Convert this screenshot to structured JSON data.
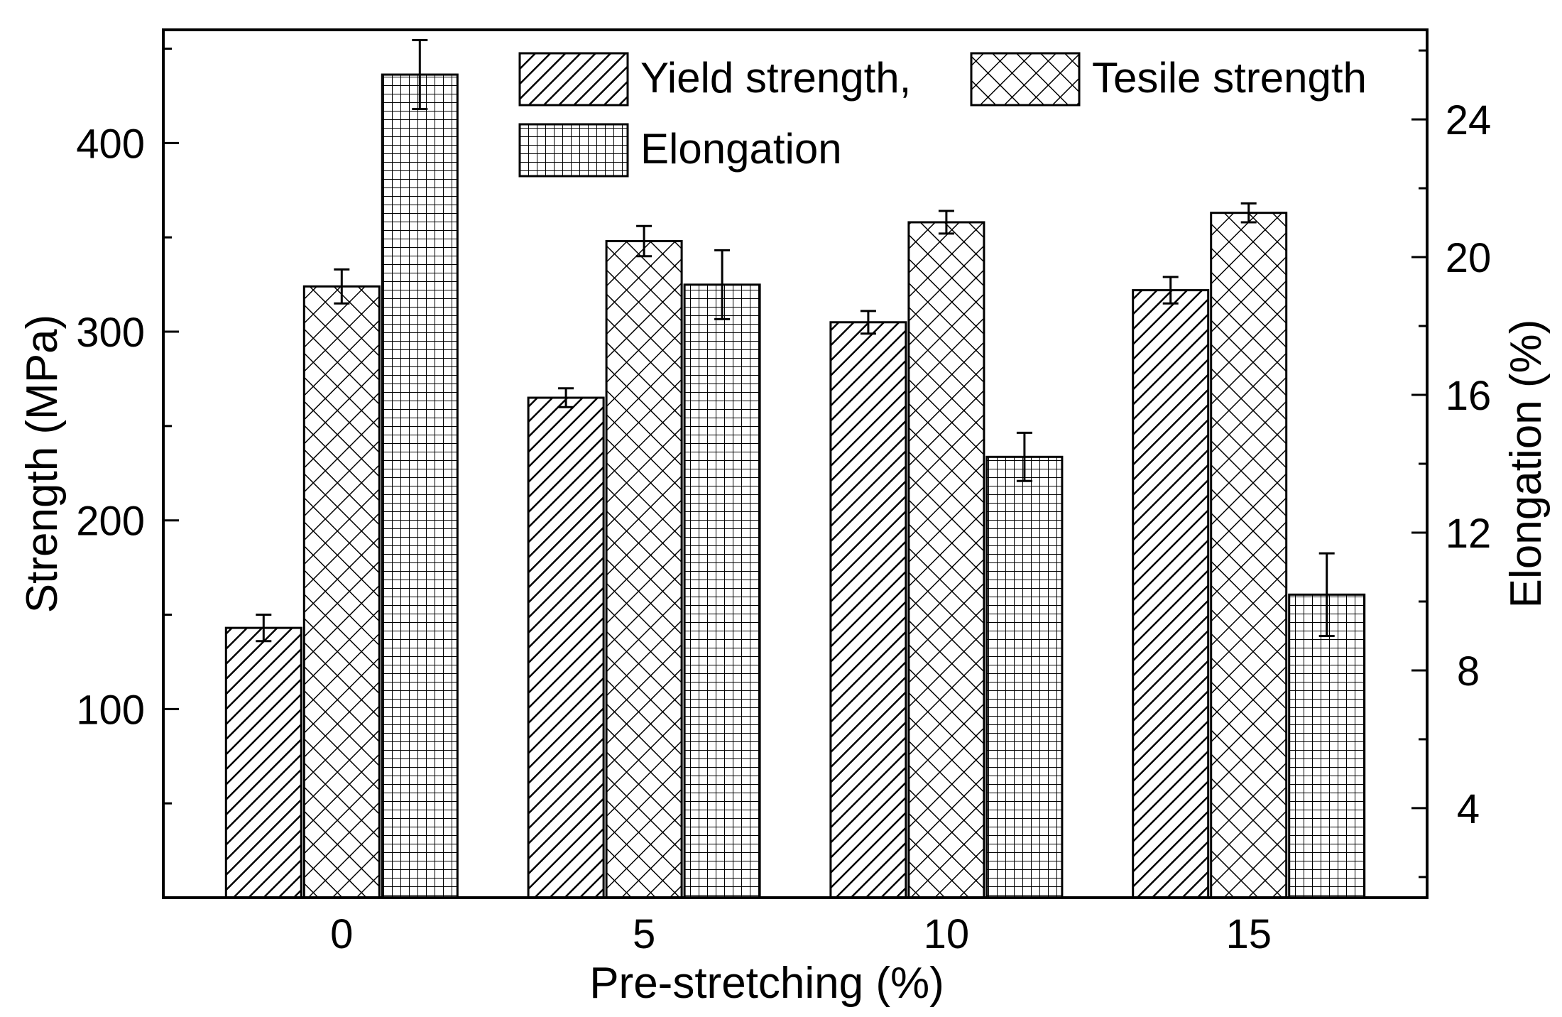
{
  "chart_data": {
    "type": "bar",
    "title": "",
    "xlabel": "Pre-stretching (%)",
    "ylabel": "Strength (MPa)",
    "y2label": "Elongation (%)",
    "categories": [
      "0",
      "5",
      "10",
      "15"
    ],
    "ylim": [
      0,
      460
    ],
    "y2lim": [
      1.4,
      26.6
    ],
    "yticks": [
      "100",
      "200",
      "300",
      "400"
    ],
    "y2ticks": [
      "4",
      "8",
      "12",
      "16",
      "20",
      "24"
    ],
    "series": [
      {
        "name": "Yield strength,",
        "axis": "left",
        "pattern": "diagonal-hatch",
        "values": [
          143,
          265,
          305,
          322
        ],
        "errors": [
          7,
          5,
          6,
          7
        ]
      },
      {
        "name": "Tesile strength",
        "axis": "left",
        "pattern": "crosshatch",
        "values": [
          324,
          348,
          358,
          363
        ],
        "errors": [
          9,
          8,
          6,
          5
        ]
      },
      {
        "name": "Elongation",
        "axis": "right",
        "pattern": "grid",
        "values": [
          25.3,
          19.2,
          14.2,
          10.2
        ],
        "errors": [
          1.0,
          1.0,
          0.7,
          1.2
        ]
      }
    ],
    "legend_placement": "top-right",
    "grid": false,
    "colors": {
      "stroke": "#000000",
      "fill": "#ffffff"
    }
  }
}
